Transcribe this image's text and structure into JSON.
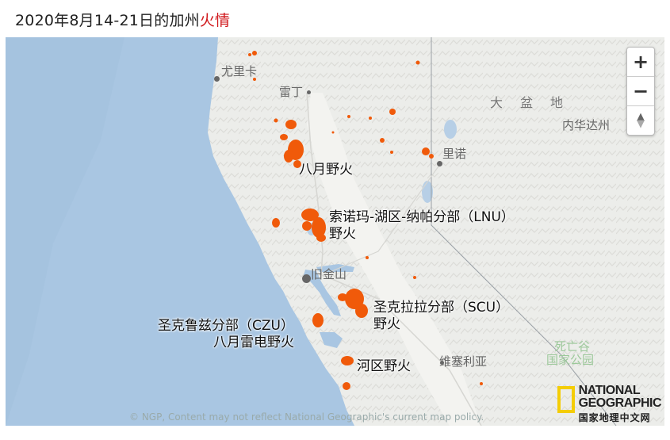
{
  "title": {
    "prefix": "2020年8月14-21日的加州",
    "highlight": "火情"
  },
  "colors": {
    "fire": "#f05a0a",
    "highlight": "#d0171b",
    "ocean": "#a9c6e2",
    "land": "#ecedea"
  },
  "zoom": {
    "in_label": "+",
    "out_label": "−",
    "reset_label": "▲▼"
  },
  "cities": {
    "eureka": "尤里卡",
    "redding": "雷丁",
    "reno": "里诺",
    "san_francisco": "旧金山",
    "visalia": "维塞利亚"
  },
  "regions": {
    "great_basin": "大盆地",
    "nevada": "内华达州"
  },
  "park": {
    "line1": "死亡谷",
    "line2": "国家公园"
  },
  "fires": {
    "august": "八月野火",
    "lnu_line1": "索诺玛-湖区-纳帕分部（LNU）",
    "lnu_line2": "野火",
    "scu_line1": "圣克拉拉分部（SCU）",
    "scu_line2": "野火",
    "czu_line1": "圣克鲁兹分部（CZU）",
    "czu_line2": "八月雷电野火",
    "river": "河区野火"
  },
  "credit": "© NGP, Content may not reflect National Geographic's current map policy.",
  "logo": {
    "line1": "NATIONAL",
    "line2": "GEOGRAPHIC",
    "line3": "国家地理中文网"
  }
}
